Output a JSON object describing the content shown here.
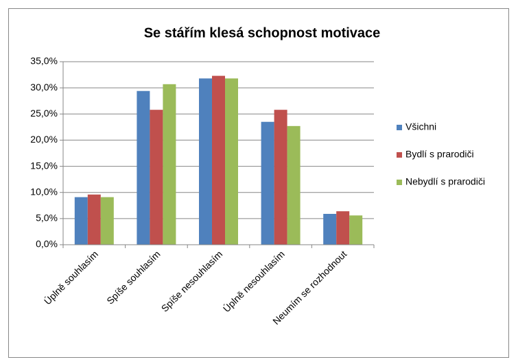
{
  "chart_data": {
    "type": "bar",
    "title": "Se stářím klesá schopnost motivace",
    "categories": [
      "Úplně souhlasím",
      "Spíše souhlasím",
      "Spíše nesouhlasím",
      "Úplně nesouhlasím",
      "Neumím se rozhodnout"
    ],
    "series": [
      {
        "name": "Všichni",
        "color": "#4f81bd",
        "values": [
          9.1,
          29.4,
          31.8,
          23.5,
          5.9
        ]
      },
      {
        "name": "Bydlí s prarodiči",
        "color": "#c0504d",
        "values": [
          9.6,
          25.8,
          32.3,
          25.8,
          6.4
        ]
      },
      {
        "name": "Nebydlí s prarodiči",
        "color": "#9bbb59",
        "values": [
          9.1,
          30.7,
          31.8,
          22.7,
          5.6
        ]
      }
    ],
    "ylim": [
      0,
      35
    ],
    "yticks": [
      {
        "value": 0,
        "label": "0,0%"
      },
      {
        "value": 5,
        "label": "5,0%"
      },
      {
        "value": 10,
        "label": "10,0%"
      },
      {
        "value": 15,
        "label": "15,0%"
      },
      {
        "value": 20,
        "label": "20,0%"
      },
      {
        "value": 25,
        "label": "25,0%"
      },
      {
        "value": 30,
        "label": "30,0%"
      },
      {
        "value": 35,
        "label": "35,0%"
      }
    ],
    "grid": true,
    "legend": "right"
  }
}
